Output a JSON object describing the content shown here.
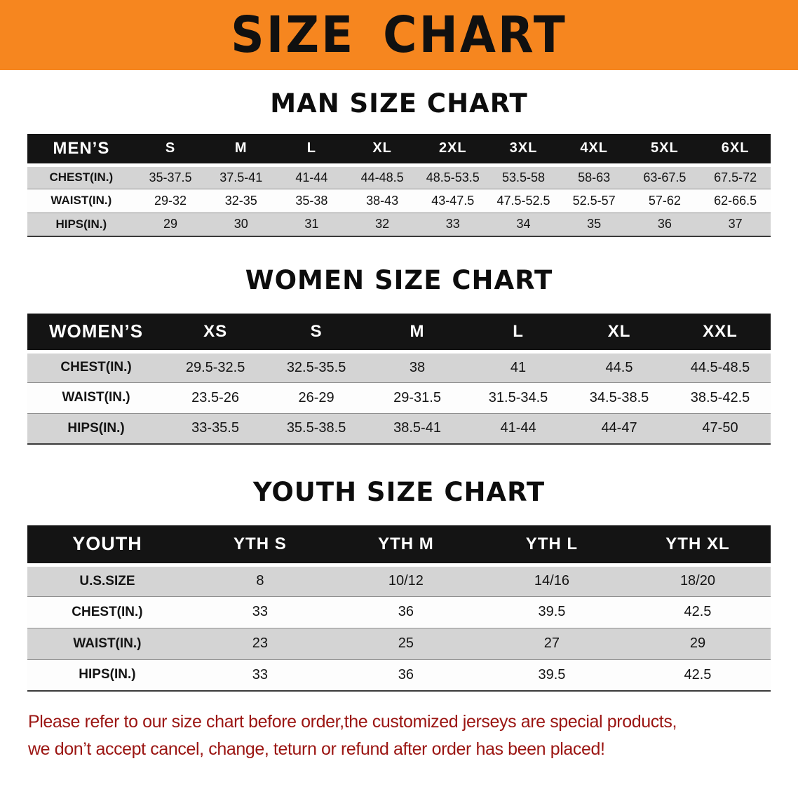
{
  "colors": {
    "banner_bg": "#F6861F",
    "header_bg": "#141414",
    "row_alt": "#d4d4d4",
    "disclaimer_color": "#9b1512"
  },
  "banner": {
    "title": "SIZE CHART"
  },
  "sections": [
    {
      "heading": "MAN SIZE CHART",
      "table": {
        "header": [
          "MEN’S",
          "S",
          "M",
          "L",
          "XL",
          "2XL",
          "3XL",
          "4XL",
          "5XL",
          "6XL"
        ],
        "rows": [
          [
            "CHEST(IN.)",
            "35-37.5",
            "37.5-41",
            "41-44",
            "44-48.5",
            "48.5-53.5",
            "53.5-58",
            "58-63",
            "63-67.5",
            "67.5-72"
          ],
          [
            "WAIST(IN.)",
            "29-32",
            "32-35",
            "35-38",
            "38-43",
            "43-47.5",
            "47.5-52.5",
            "52.5-57",
            "57-62",
            "62-66.5"
          ],
          [
            "HIPS(IN.)",
            "29",
            "30",
            "31",
            "32",
            "33",
            "34",
            "35",
            "36",
            "37"
          ]
        ]
      }
    },
    {
      "heading": "WOMEN SIZE CHART",
      "table": {
        "header": [
          "WOMEN’S",
          "XS",
          "S",
          "M",
          "L",
          "XL",
          "XXL"
        ],
        "rows": [
          [
            "CHEST(IN.)",
            "29.5-32.5",
            "32.5-35.5",
            "38",
            "41",
            "44.5",
            "44.5-48.5"
          ],
          [
            "WAIST(IN.)",
            "23.5-26",
            "26-29",
            "29-31.5",
            "31.5-34.5",
            "34.5-38.5",
            "38.5-42.5"
          ],
          [
            "HIPS(IN.)",
            "33-35.5",
            "35.5-38.5",
            "38.5-41",
            "41-44",
            "44-47",
            "47-50"
          ]
        ]
      }
    },
    {
      "heading": "YOUTH SIZE CHART",
      "table": {
        "header": [
          "YOUTH",
          "YTH S",
          "YTH M",
          "YTH L",
          "YTH XL"
        ],
        "rows": [
          [
            "U.S.SIZE",
            "8",
            "10/12",
            "14/16",
            "18/20"
          ],
          [
            "CHEST(IN.)",
            "33",
            "36",
            "39.5",
            "42.5"
          ],
          [
            "WAIST(IN.)",
            "23",
            "25",
            "27",
            "29"
          ],
          [
            "HIPS(IN.)",
            "33",
            "36",
            "39.5",
            "42.5"
          ]
        ]
      }
    }
  ],
  "disclaimer": {
    "line1": "Please refer to our size chart before order,the customized jerseys are special products,",
    "line2": "we don’t accept cancel, change, teturn or refund after order has been placed!"
  }
}
